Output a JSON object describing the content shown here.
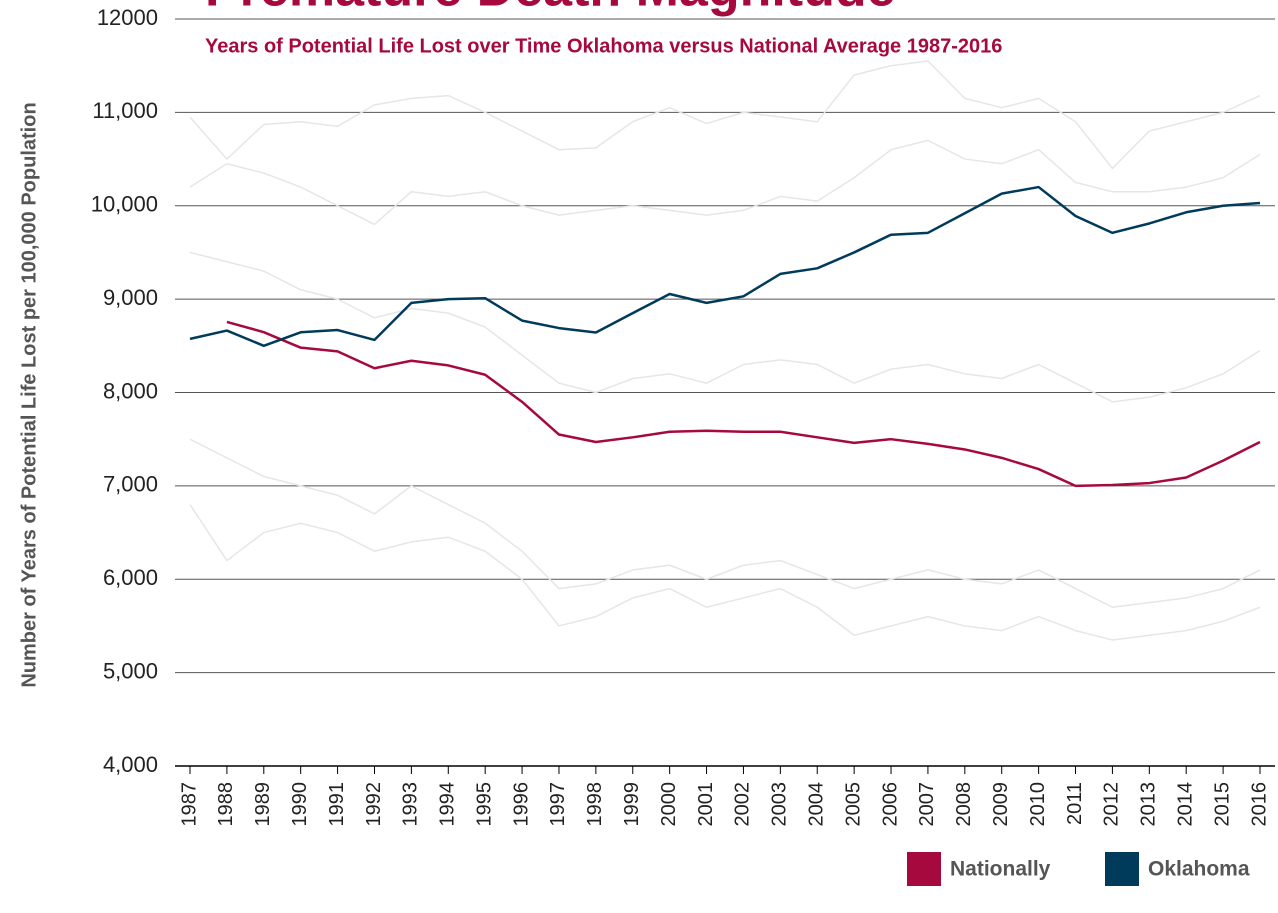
{
  "chart_data": {
    "type": "line",
    "title": "Premature Death Magnitude",
    "subtitle": "Years of Potential Life Lost over Time Oklahoma versus National Average 1987-2016",
    "y_label": "Number of Years of Potential Life Lost per 100,000 Population",
    "categories": [
      "1987",
      "1988",
      "1989",
      "1990",
      "1991",
      "1992",
      "1993",
      "1994",
      "1995",
      "1996",
      "1997",
      "1998",
      "1999",
      "2000",
      "2001",
      "2002",
      "2003",
      "2004",
      "2005",
      "2006",
      "2007",
      "2008",
      "2009",
      "2010",
      "2011",
      "2012",
      "2013",
      "2014",
      "2015",
      "2016"
    ],
    "ylim": [
      4000,
      12000
    ],
    "yticks": [
      {
        "value": 4000,
        "label": "4,000"
      },
      {
        "value": 5000,
        "label": "5,000"
      },
      {
        "value": 6000,
        "label": "6,000"
      },
      {
        "value": 7000,
        "label": "7,000"
      },
      {
        "value": 8000,
        "label": "8,000"
      },
      {
        "value": 9000,
        "label": "9,000"
      },
      {
        "value": 10000,
        "label": "10,000"
      },
      {
        "value": 11000,
        "label": "11,000"
      },
      12000
    ],
    "grid": true,
    "legend": "bottom-right",
    "series": [
      {
        "color": "#e6e6e6",
        "values": [
          10950,
          10500,
          10870,
          10900,
          10850,
          11080,
          11150,
          11180,
          11000,
          10800,
          10600,
          10620,
          10900,
          11050,
          10880,
          11000,
          10950,
          10900,
          11400,
          11500,
          11550,
          11150,
          11050,
          11150,
          10900,
          10400,
          10800,
          10900,
          11000,
          11180
        ]
      },
      {
        "color": "#e6e6e6",
        "values": [
          10200,
          10450,
          10350,
          10200,
          10000,
          9800,
          10150,
          10100,
          10150,
          10000,
          9900,
          9950,
          10000,
          9950,
          9900,
          9950,
          10100,
          10050,
          10300,
          10600,
          10700,
          10500,
          10450,
          10600,
          10250,
          10150,
          10150,
          10200,
          10300,
          10550
        ]
      },
      {
        "color": "#e6e6e6",
        "values": [
          9500,
          9400,
          9300,
          9100,
          9000,
          8800,
          8900,
          8850,
          8700,
          8400,
          8100,
          8000,
          8150,
          8200,
          8100,
          8300,
          8350,
          8300,
          8100,
          8250,
          8300,
          8200,
          8150,
          8300,
          8100,
          7900,
          7950,
          8050,
          8200,
          8450
        ]
      },
      {
        "color": "#e6e6e6",
        "values": [
          7500,
          7300,
          7100,
          7000,
          6900,
          6700,
          7000,
          6800,
          6600,
          6300,
          5900,
          5950,
          6100,
          6150,
          6000,
          6150,
          6200,
          6050,
          5900,
          6000,
          6100,
          6000,
          5950,
          6100,
          5900,
          5700,
          5750,
          5800,
          5900,
          6100
        ]
      },
      {
        "color": "#e6e6e6",
        "values": [
          6800,
          6200,
          6500,
          6600,
          6500,
          6300,
          6400,
          6450,
          6300,
          6000,
          5500,
          5600,
          5800,
          5900,
          5700,
          5800,
          5900,
          5700,
          5400,
          5500,
          5600,
          5500,
          5450,
          5600,
          5450,
          5350,
          5400,
          5450,
          5550,
          5700
        ]
      },
      {
        "name": "Nationally",
        "color": "#a6093d",
        "values": [
          null,
          8756,
          8646,
          8480,
          8440,
          8260,
          8340,
          8290,
          8190,
          7900,
          7550,
          7470,
          7520,
          7580,
          7590,
          7580,
          7580,
          7520,
          7460,
          7500,
          7450,
          7390,
          7300,
          7180,
          7000,
          7010,
          7030,
          7090,
          7270,
          7470
        ]
      },
      {
        "name": "Oklahoma",
        "color": "#003b5c",
        "values": [
          8574,
          8663,
          8500,
          8645,
          8669,
          8563,
          8960,
          9000,
          9010,
          8770,
          8690,
          8643,
          8850,
          9055,
          8960,
          9030,
          9270,
          9330,
          9500,
          9690,
          9710,
          9920,
          10130,
          10200,
          9890,
          9710,
          9810,
          9930,
          10000,
          10030
        ]
      }
    ]
  }
}
